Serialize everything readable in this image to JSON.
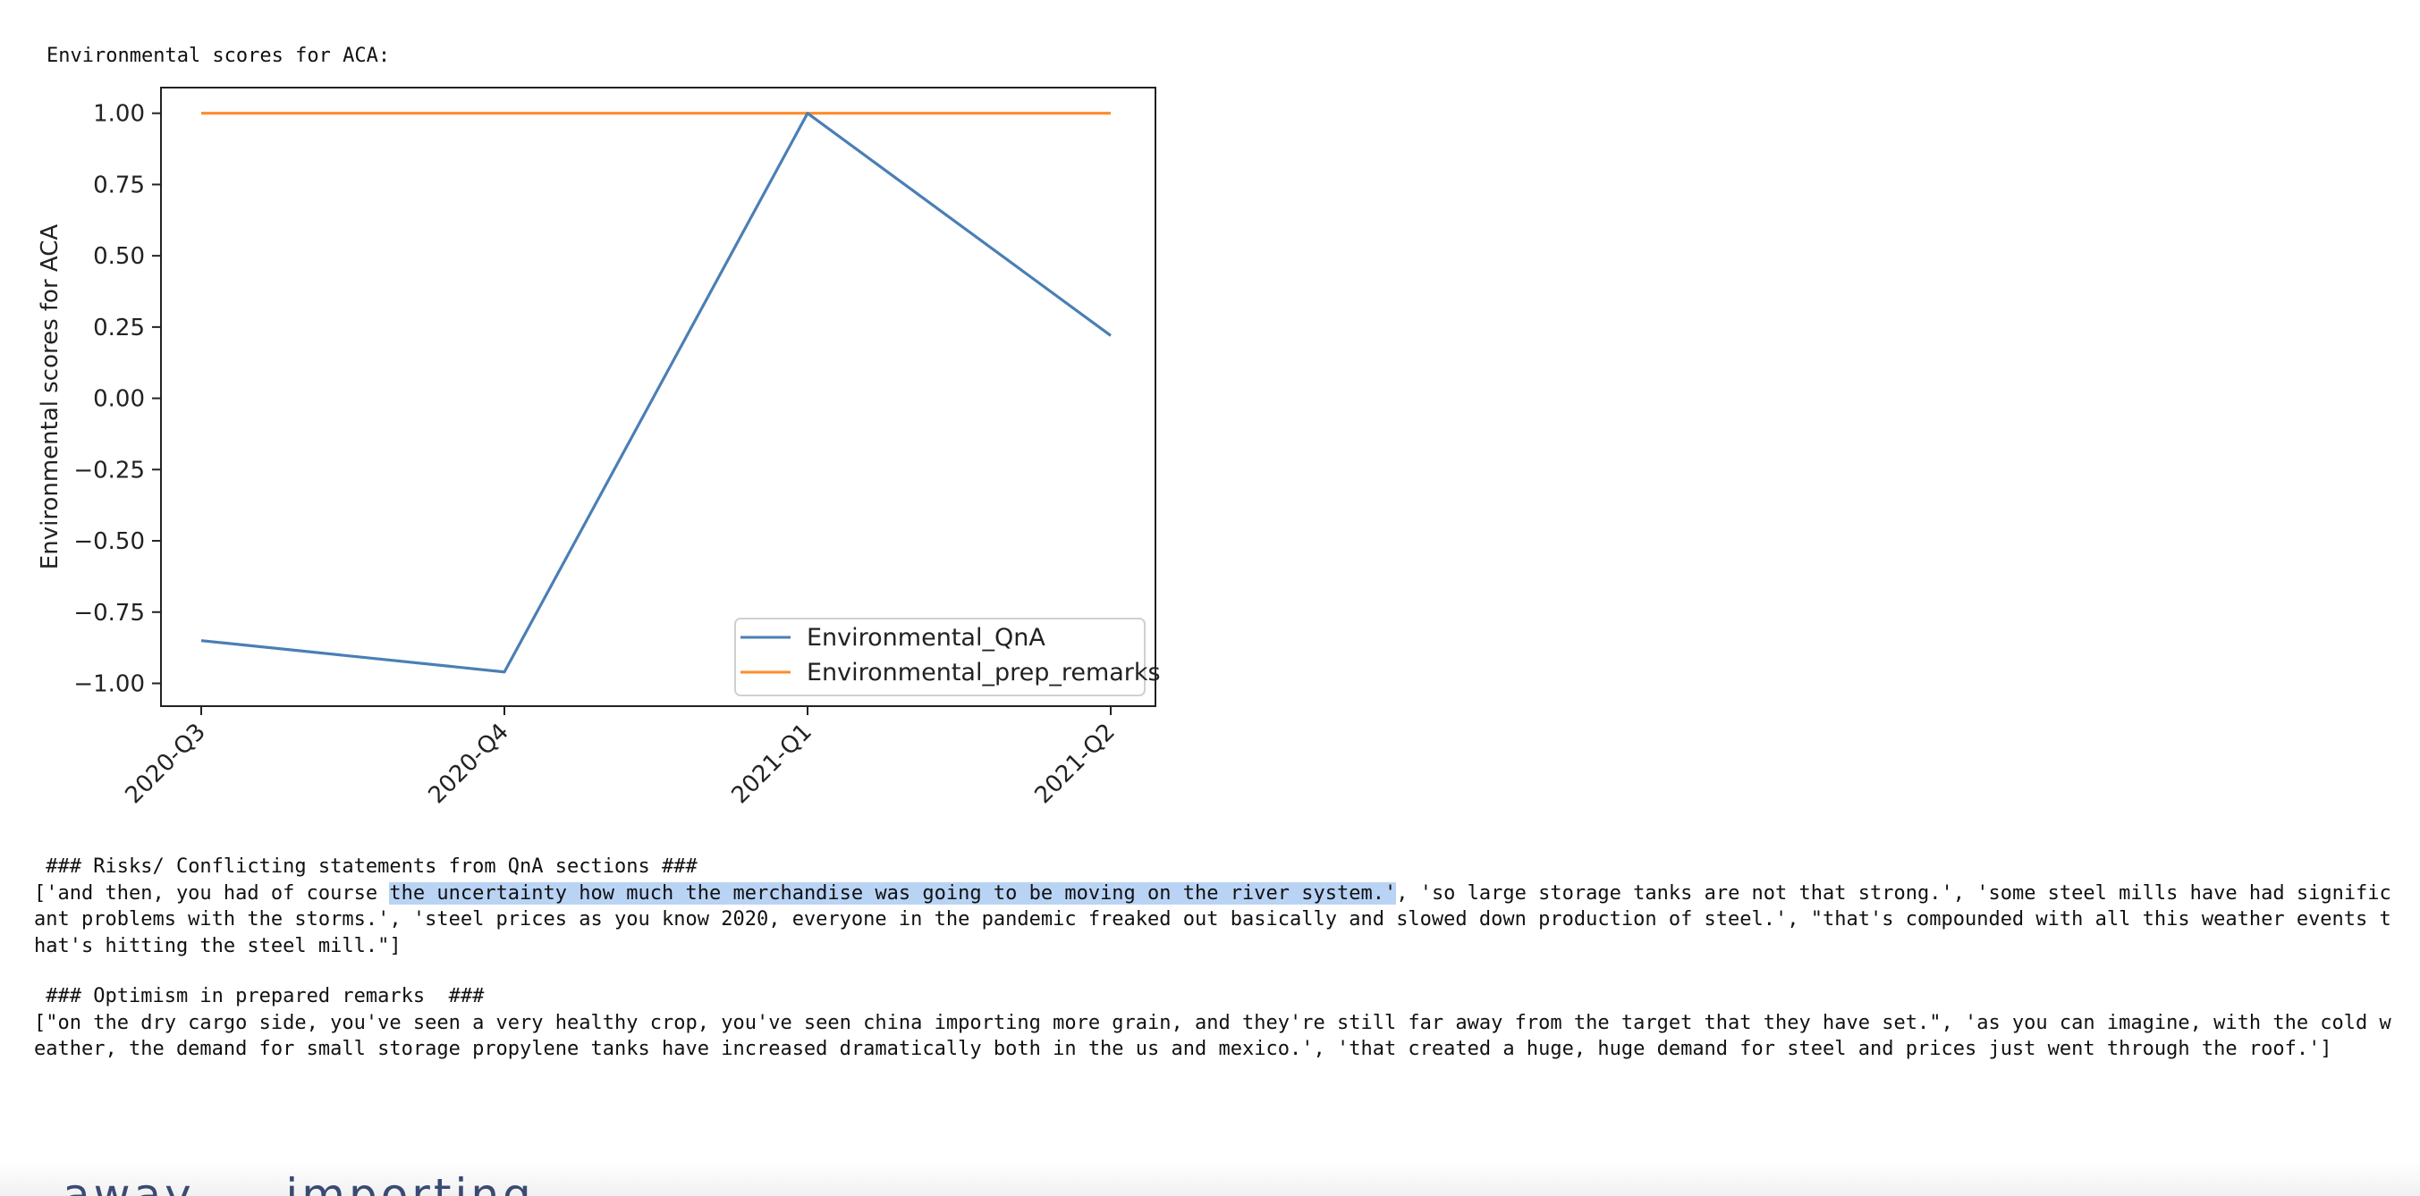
{
  "chart_data": {
    "type": "line",
    "title": "Environmental scores for ACA:",
    "ylabel": "Environmental scores for ACA",
    "xlabel": "",
    "categories": [
      "2020-Q3",
      "2020-Q4",
      "2021-Q1",
      "2021-Q2"
    ],
    "series": [
      {
        "name": "Environmental_QnA",
        "values": [
          -0.85,
          -0.96,
          1.0,
          0.22
        ],
        "color": "#4a7fb5"
      },
      {
        "name": "Environmental_prep_remarks",
        "values": [
          1.0,
          1.0,
          1.0,
          1.0
        ],
        "color": "#ff8c2a"
      }
    ],
    "ylim": [
      -1.08,
      1.09
    ],
    "yticks": [
      1.0,
      0.75,
      0.5,
      0.25,
      0.0,
      -0.25,
      -0.5,
      -0.75,
      -1.0
    ],
    "ytick_labels": [
      "1.00",
      "0.75",
      "0.50",
      "0.25",
      "0.00",
      "−0.25",
      "−0.50",
      "−0.75",
      "−1.00"
    ],
    "grid": false,
    "legend_position": "lower-right"
  },
  "risks": {
    "heading": " ### Risks/ Conflicting statements from QnA sections ###",
    "pre": "['and then, you had of course ",
    "highlight": "the uncertainty how much the merchandise was going to be moving on the river system.'",
    "post": ", 'so large storage tanks are not that strong.', 'some steel mills have had significant problems with the storms.', 'steel prices as you know 2020, everyone in the pandemic freaked out basically and slowed down production of steel.', \"that's compounded with all this weather events that's hitting the steel mill.\"]"
  },
  "optimism": {
    "heading": " ### Optimism in prepared remarks  ###",
    "text": "[\"on the dry cargo side, you've seen a very healthy crop, you've seen china importing more grain, and they're still far away from the target that they have set.\", 'as you can imagine, with the cold weather, the demand for small storage propylene tanks have increased dramatically both in the us and mexico.', 'that created a huge, huge demand for steel and prices just went through the roof.']"
  },
  "bottom_partial_text": "away -   importing"
}
